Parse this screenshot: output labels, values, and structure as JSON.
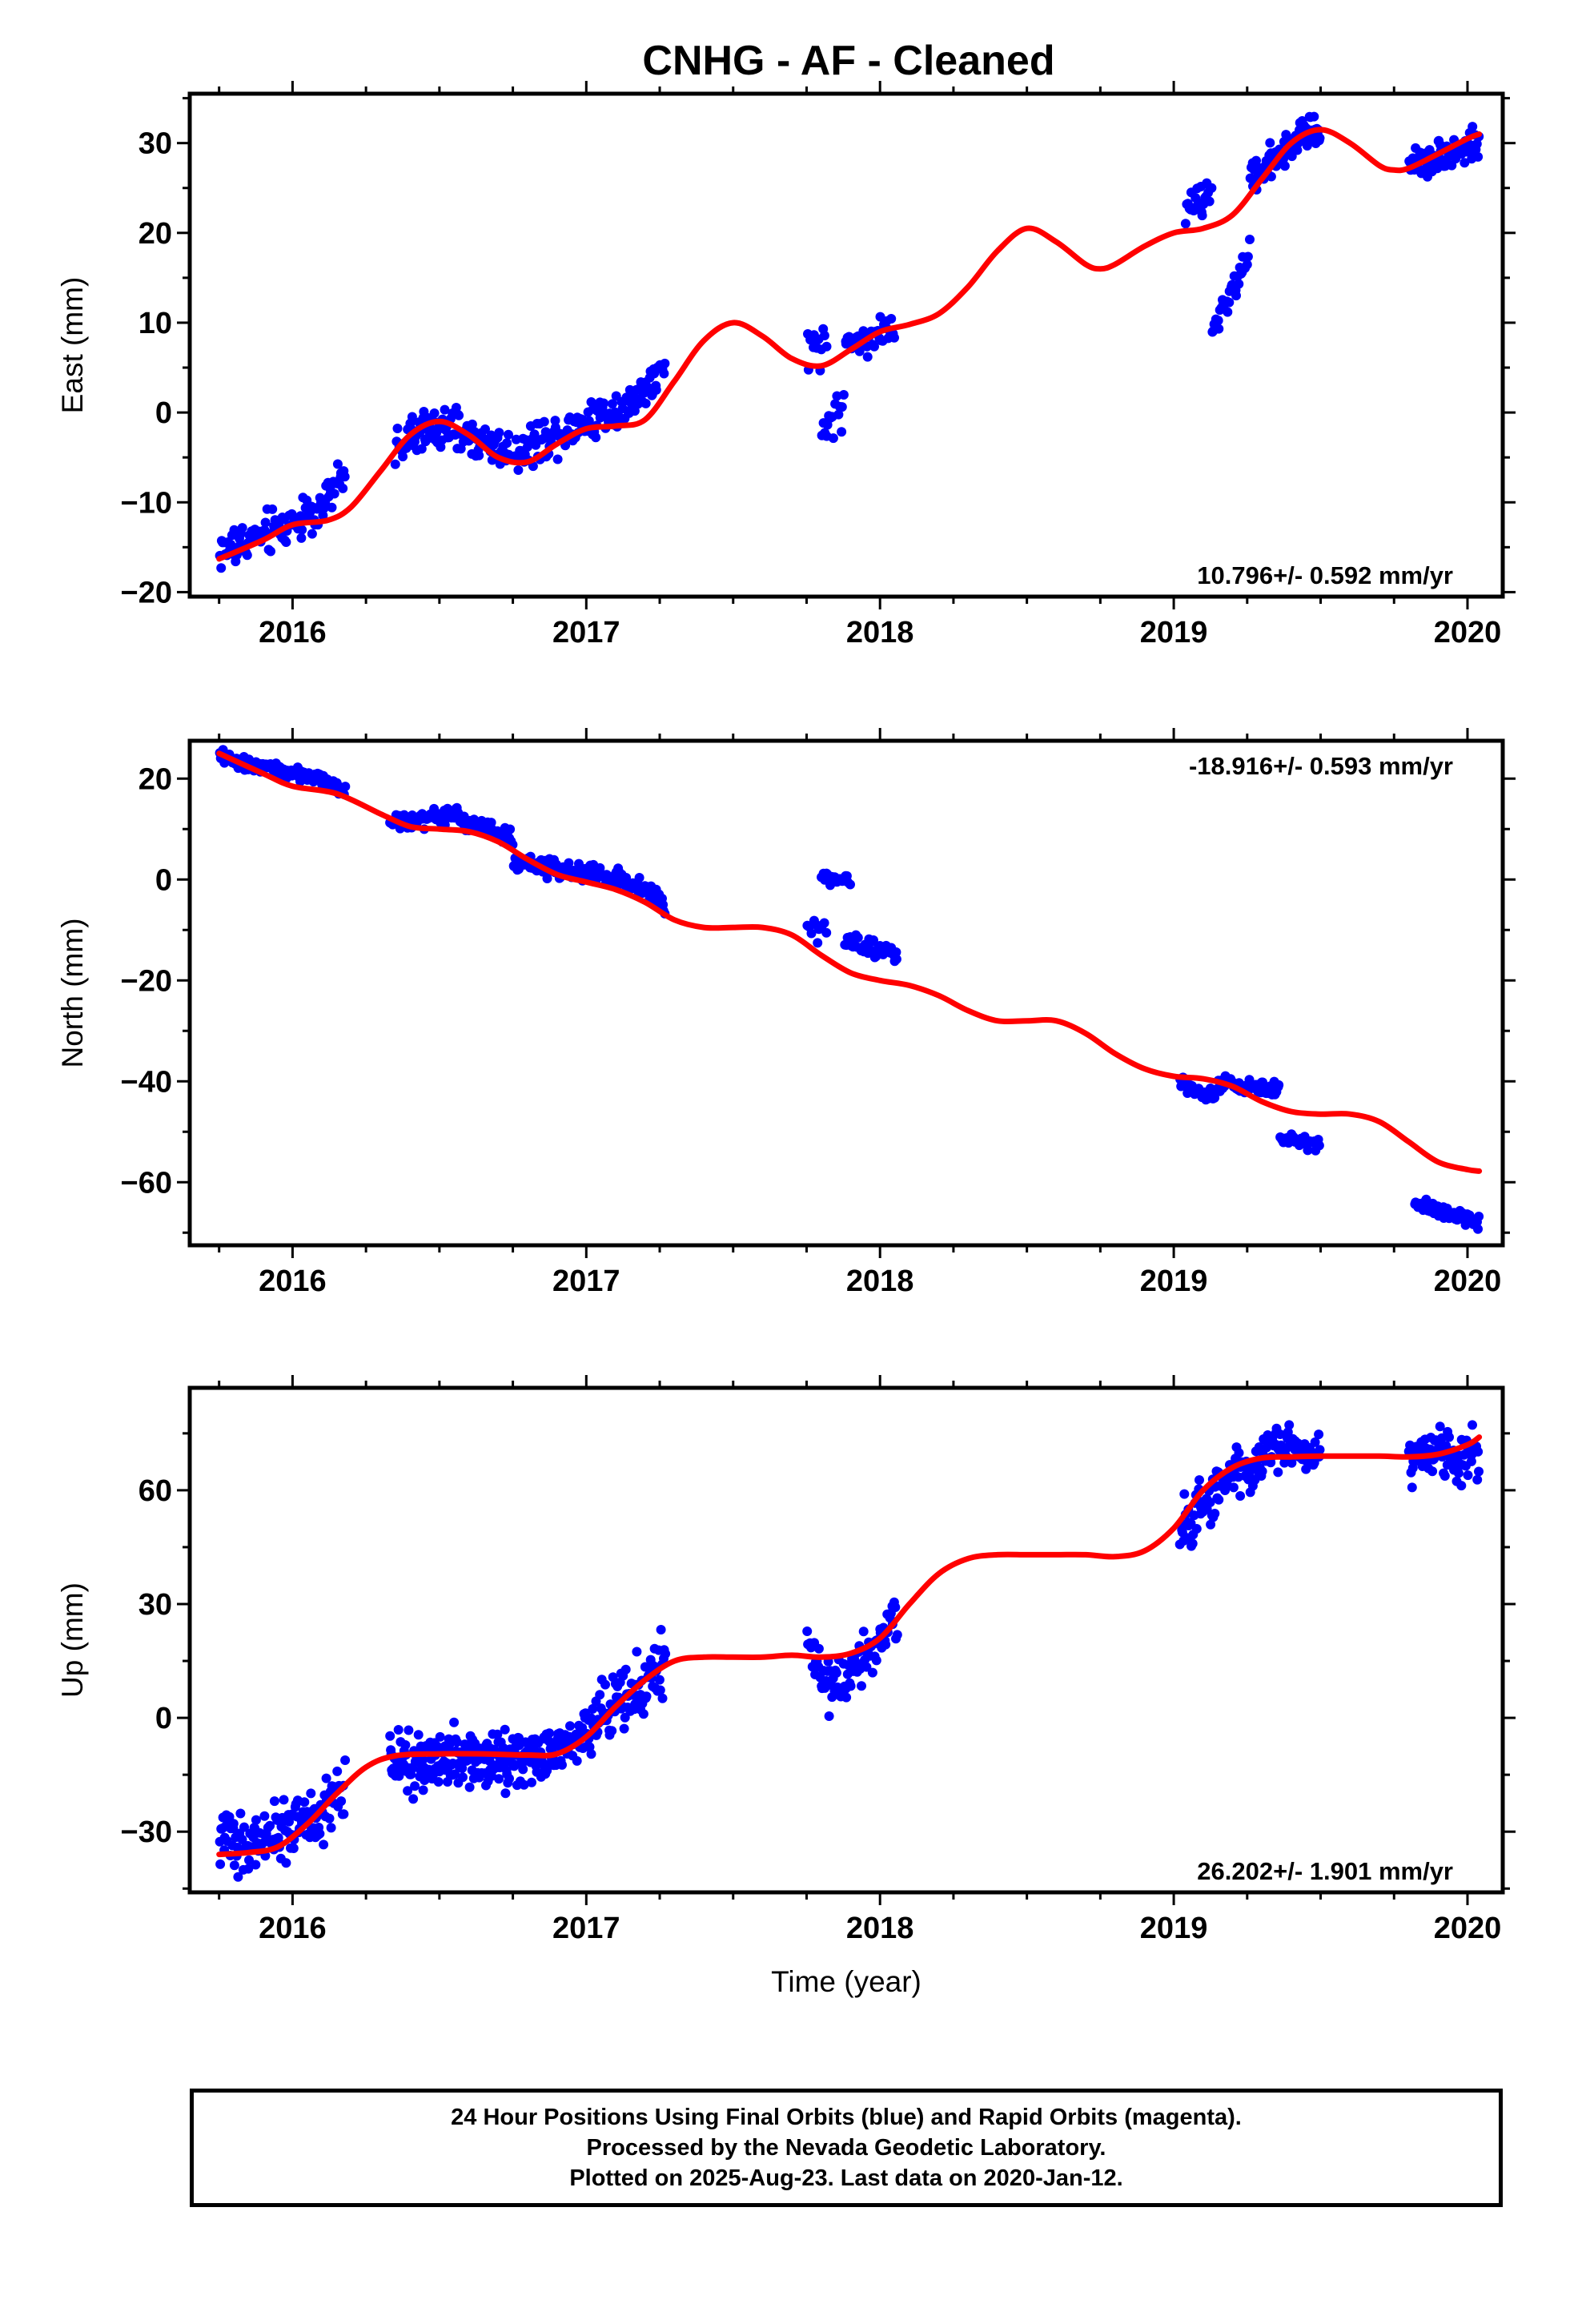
{
  "title": "CNHG  - AF - Cleaned",
  "xlabel": "Time (year)",
  "footer": {
    "line1": "24 Hour Positions Using Final Orbits (blue) and Rapid Orbits (magenta).",
    "line2": "Processed by the Nevada Geodetic Laboratory.",
    "line3": "Plotted on 2025-Aug-23. Last data on 2020-Jan-12."
  },
  "colors": {
    "final_orbits": "#0000ff",
    "model": "#ff0000",
    "rapid_orbits": "#ff00ff"
  },
  "chart_data": [
    {
      "type": "scatter",
      "title": "",
      "xlabel": "",
      "ylabel": "East (mm)",
      "xlim": [
        2015.65,
        2020.12
      ],
      "ylim": [
        -20.5,
        35.5
      ],
      "xticks": [
        2016,
        2017,
        2018,
        2019,
        2020
      ],
      "yticks": [
        -20,
        -10,
        0,
        10,
        20,
        30
      ],
      "rate_label": "10.796+/- 0.592 mm/yr",
      "rate_position": "bottom-right",
      "data_segments": [
        {
          "x0": 2015.75,
          "x1": 2016.18,
          "trend": [
            [
              2015.75,
              -15.5
            ],
            [
              2015.95,
              -13.0
            ],
            [
              2016.1,
              -10.5
            ],
            [
              2016.18,
              -7.0
            ]
          ],
          "spread": 1.6,
          "n": 110
        },
        {
          "x0": 2016.35,
          "x1": 2017.27,
          "trend": [
            [
              2016.35,
              -3.5
            ],
            [
              2016.5,
              -1.5
            ],
            [
              2016.75,
              -4.5
            ],
            [
              2016.95,
              -1.5
            ],
            [
              2017.15,
              1.0
            ],
            [
              2017.27,
              4.5
            ]
          ],
          "spread": 1.5,
          "n": 260
        },
        {
          "x0": 2017.75,
          "x1": 2017.82,
          "trend": [
            [
              2017.75,
              7.0
            ],
            [
              2017.82,
              7.5
            ]
          ],
          "spread": 1.5,
          "n": 14
        },
        {
          "x0": 2017.8,
          "x1": 2017.88,
          "trend": [
            [
              2017.8,
              -2.0
            ],
            [
              2017.88,
              1.0
            ]
          ],
          "spread": 1.6,
          "n": 16
        },
        {
          "x0": 2017.88,
          "x1": 2018.05,
          "trend": [
            [
              2017.88,
              7.5
            ],
            [
              2018.05,
              9.5
            ]
          ],
          "spread": 1.2,
          "n": 40
        },
        {
          "x0": 2019.04,
          "x1": 2019.13,
          "trend": [
            [
              2019.04,
              22.0
            ],
            [
              2019.13,
              24.5
            ]
          ],
          "spread": 1.4,
          "n": 24
        },
        {
          "x0": 2019.13,
          "x1": 2019.26,
          "trend": [
            [
              2019.13,
              9.0
            ],
            [
              2019.26,
              18.0
            ]
          ],
          "spread": 1.0,
          "n": 35
        },
        {
          "x0": 2019.26,
          "x1": 2019.5,
          "trend": [
            [
              2019.26,
              26.0
            ],
            [
              2019.4,
              30.0
            ],
            [
              2019.5,
              32.0
            ]
          ],
          "spread": 1.4,
          "n": 80
        },
        {
          "x0": 2019.8,
          "x1": 2020.04,
          "trend": [
            [
              2019.8,
              27.5
            ],
            [
              2020.04,
              30.0
            ]
          ],
          "spread": 1.1,
          "n": 80
        }
      ],
      "model_curve": {
        "x": [
          2015.75,
          2015.9,
          2016.0,
          2016.12,
          2016.2,
          2016.3,
          2016.4,
          2016.5,
          2016.6,
          2016.7,
          2016.8,
          2016.9,
          2017.0,
          2017.1,
          2017.2,
          2017.3,
          2017.4,
          2017.5,
          2017.6,
          2017.7,
          2017.8,
          2017.9,
          2018.0,
          2018.1,
          2018.2,
          2018.3,
          2018.4,
          2018.5,
          2018.6,
          2018.7,
          2018.75,
          2018.8,
          2018.9,
          2019.0,
          2019.1,
          2019.2,
          2019.3,
          2019.4,
          2019.5,
          2019.6,
          2019.7,
          2019.75,
          2019.8,
          2019.9,
          2020.0,
          2020.04
        ],
        "y": [
          -16.3,
          -14.2,
          -12.5,
          -12.0,
          -10.5,
          -6.5,
          -2.5,
          -1.0,
          -2.5,
          -5.0,
          -5.5,
          -3.5,
          -1.8,
          -1.5,
          -0.8,
          3.5,
          8.0,
          10.0,
          8.5,
          6.0,
          5.2,
          7.0,
          9.0,
          9.8,
          11.0,
          14.0,
          18.0,
          20.5,
          19.0,
          16.5,
          16.0,
          16.5,
          18.5,
          20.0,
          20.5,
          22.0,
          26.0,
          30.0,
          31.5,
          30.0,
          27.5,
          27.0,
          27.2,
          28.8,
          30.5,
          31.0
        ]
      }
    },
    {
      "type": "scatter",
      "title": "",
      "xlabel": "",
      "ylabel": "North (mm)",
      "xlim": [
        2015.65,
        2020.12
      ],
      "ylim": [
        -72.5,
        27.5
      ],
      "xticks": [
        2016,
        2017,
        2018,
        2019,
        2020
      ],
      "yticks": [
        -60,
        -40,
        -20,
        0,
        20
      ],
      "rate_label": "-18.916+/- 0.593 mm/yr",
      "rate_position": "top-right",
      "data_segments": [
        {
          "x0": 2015.75,
          "x1": 2016.18,
          "trend": [
            [
              2015.75,
              24.5
            ],
            [
              2015.95,
              21.5
            ],
            [
              2016.1,
              20.0
            ],
            [
              2016.18,
              17.0
            ]
          ],
          "spread": 1.0,
          "n": 120
        },
        {
          "x0": 2016.33,
          "x1": 2016.75,
          "trend": [
            [
              2016.33,
              11.5
            ],
            [
              2016.55,
              12.5
            ],
            [
              2016.75,
              8.0
            ]
          ],
          "spread": 1.1,
          "n": 120
        },
        {
          "x0": 2016.75,
          "x1": 2017.27,
          "trend": [
            [
              2016.75,
              3.5
            ],
            [
              2017.0,
              1.5
            ],
            [
              2017.2,
              -1.5
            ],
            [
              2017.27,
              -6.0
            ]
          ],
          "spread": 1.3,
          "n": 150
        },
        {
          "x0": 2017.75,
          "x1": 2017.82,
          "trend": [
            [
              2017.75,
              -9.0
            ],
            [
              2017.82,
              -11.0
            ]
          ],
          "spread": 1.4,
          "n": 10
        },
        {
          "x0": 2017.8,
          "x1": 2017.9,
          "trend": [
            [
              2017.8,
              1.0
            ],
            [
              2017.9,
              -1.0
            ]
          ],
          "spread": 1.0,
          "n": 20
        },
        {
          "x0": 2017.88,
          "x1": 2018.06,
          "trend": [
            [
              2017.88,
              -12.0
            ],
            [
              2018.06,
              -15.0
            ]
          ],
          "spread": 1.2,
          "n": 40
        },
        {
          "x0": 2019.02,
          "x1": 2019.15,
          "trend": [
            [
              2019.02,
              -40.5
            ],
            [
              2019.15,
              -43.0
            ]
          ],
          "spread": 1.1,
          "n": 35
        },
        {
          "x0": 2019.15,
          "x1": 2019.36,
          "trend": [
            [
              2019.15,
              -40.0
            ],
            [
              2019.36,
              -42.0
            ]
          ],
          "spread": 1.0,
          "n": 50
        },
        {
          "x0": 2019.36,
          "x1": 2019.5,
          "trend": [
            [
              2019.36,
              -51.0
            ],
            [
              2019.5,
              -52.5
            ]
          ],
          "spread": 0.8,
          "n": 30
        },
        {
          "x0": 2019.82,
          "x1": 2020.04,
          "trend": [
            [
              2019.82,
              -64.0
            ],
            [
              2020.04,
              -68.0
            ]
          ],
          "spread": 0.9,
          "n": 80
        }
      ],
      "model_curve": {
        "x": [
          2015.75,
          2015.9,
          2016.0,
          2016.15,
          2016.3,
          2016.4,
          2016.5,
          2016.6,
          2016.7,
          2016.8,
          2016.9,
          2017.0,
          2017.1,
          2017.2,
          2017.3,
          2017.4,
          2017.5,
          2017.6,
          2017.7,
          2017.8,
          2017.9,
          2018.0,
          2018.1,
          2018.2,
          2018.3,
          2018.4,
          2018.5,
          2018.6,
          2018.7,
          2018.8,
          2018.9,
          2019.0,
          2019.1,
          2019.2,
          2019.3,
          2019.4,
          2019.5,
          2019.6,
          2019.7,
          2019.8,
          2019.9,
          2020.0,
          2020.04
        ],
        "y": [
          25.0,
          21.0,
          18.5,
          17.0,
          13.0,
          10.5,
          10.0,
          9.5,
          7.5,
          4.0,
          1.0,
          -0.5,
          -2.0,
          -4.5,
          -8.0,
          -9.5,
          -9.5,
          -9.5,
          -11.0,
          -15.0,
          -18.5,
          -20.0,
          -21.0,
          -23.0,
          -26.0,
          -28.0,
          -28.0,
          -28.0,
          -30.5,
          -34.5,
          -37.5,
          -39.0,
          -39.5,
          -41.0,
          -44.0,
          -46.0,
          -46.5,
          -46.5,
          -48.0,
          -52.0,
          -56.0,
          -57.5,
          -57.8
        ]
      }
    },
    {
      "type": "scatter",
      "title": "",
      "xlabel": "Time (year)",
      "ylabel": "Up (mm)",
      "xlim": [
        2015.65,
        2020.12
      ],
      "ylim": [
        -46,
        87
      ],
      "xticks": [
        2016,
        2017,
        2018,
        2019,
        2020
      ],
      "yticks": [
        -30,
        0,
        30,
        60
      ],
      "rate_label": "26.202+/- 1.901 mm/yr",
      "rate_position": "bottom-right",
      "data_segments": [
        {
          "x0": 2015.75,
          "x1": 2016.18,
          "trend": [
            [
              2015.75,
              -33.0
            ],
            [
              2015.95,
              -32.0
            ],
            [
              2016.1,
              -25.0
            ],
            [
              2016.18,
              -18.0
            ]
          ],
          "spread": 5.0,
          "n": 140
        },
        {
          "x0": 2016.33,
          "x1": 2016.9,
          "trend": [
            [
              2016.33,
              -12.0
            ],
            [
              2016.6,
              -10.0
            ],
            [
              2016.9,
              -10.0
            ]
          ],
          "spread": 5.0,
          "n": 230
        },
        {
          "x0": 2016.9,
          "x1": 2017.27,
          "trend": [
            [
              2016.9,
              -8.0
            ],
            [
              2017.1,
              3.0
            ],
            [
              2017.27,
              14.0
            ]
          ],
          "spread": 5.5,
          "n": 130
        },
        {
          "x0": 2017.75,
          "x1": 2018.06,
          "trend": [
            [
              2017.75,
              20.0
            ],
            [
              2017.83,
              8.0
            ],
            [
              2017.95,
              15.0
            ],
            [
              2018.06,
              27.0
            ]
          ],
          "spread": 4.5,
          "n": 90
        },
        {
          "x0": 2019.02,
          "x1": 2019.5,
          "trend": [
            [
              2019.02,
              50.0
            ],
            [
              2019.2,
              64.0
            ],
            [
              2019.35,
              71.0
            ],
            [
              2019.5,
              70.0
            ]
          ],
          "spread": 4.0,
          "n": 160
        },
        {
          "x0": 2019.8,
          "x1": 2020.04,
          "trend": [
            [
              2019.8,
              68.0
            ],
            [
              2020.04,
              70.0
            ]
          ],
          "spread": 4.5,
          "n": 80
        }
      ],
      "model_curve": {
        "x": [
          2015.75,
          2015.85,
          2015.95,
          2016.05,
          2016.15,
          2016.25,
          2016.35,
          2016.5,
          2016.65,
          2016.8,
          2016.9,
          2017.0,
          2017.1,
          2017.2,
          2017.3,
          2017.4,
          2017.5,
          2017.6,
          2017.7,
          2017.8,
          2017.9,
          2018.0,
          2018.1,
          2018.2,
          2018.3,
          2018.4,
          2018.5,
          2018.6,
          2018.7,
          2018.8,
          2018.9,
          2019.0,
          2019.1,
          2019.2,
          2019.3,
          2019.4,
          2019.5,
          2019.6,
          2019.7,
          2019.8,
          2019.9,
          2020.0,
          2020.04
        ],
        "y": [
          -36.0,
          -35.5,
          -34.0,
          -28.0,
          -20.0,
          -13.0,
          -10.0,
          -9.5,
          -9.5,
          -9.8,
          -9.5,
          -5.0,
          3.0,
          10.0,
          15.0,
          16.0,
          16.0,
          16.0,
          16.5,
          16.0,
          17.0,
          21.0,
          30.0,
          38.0,
          42.0,
          43.0,
          43.0,
          43.0,
          43.0,
          42.5,
          44.0,
          50.0,
          60.0,
          66.0,
          68.5,
          68.8,
          69.0,
          69.0,
          69.0,
          68.8,
          69.5,
          72.0,
          74.0
        ]
      }
    }
  ]
}
